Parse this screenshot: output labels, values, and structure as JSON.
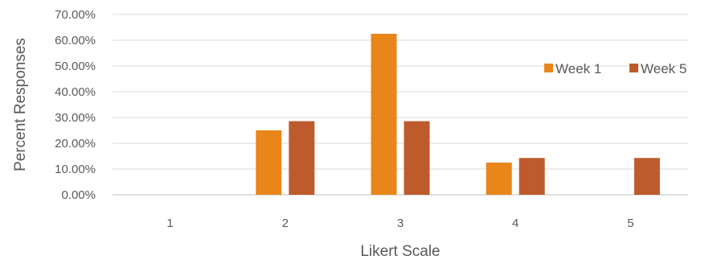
{
  "chart_data": {
    "type": "bar",
    "title": "",
    "xlabel": "Likert Scale",
    "ylabel": "Percent Responses",
    "categories": [
      "1",
      "2",
      "3",
      "4",
      "5"
    ],
    "ylim": [
      0,
      70
    ],
    "yticks": [
      0,
      10,
      20,
      30,
      40,
      50,
      60,
      70
    ],
    "ytick_labels": [
      "0.00%",
      "10.00%",
      "20.00%",
      "30.00%",
      "40.00%",
      "50.00%",
      "60.00%",
      "70.00%"
    ],
    "grid": true,
    "legend_position": "right",
    "series": [
      {
        "name": "Week 1",
        "color": "#E8861A",
        "values": [
          0,
          25,
          62.5,
          12.5,
          0
        ]
      },
      {
        "name": "Week 5",
        "color": "#BE5B2D",
        "values": [
          0,
          28.57,
          28.57,
          14.29,
          14.29
        ]
      }
    ]
  }
}
